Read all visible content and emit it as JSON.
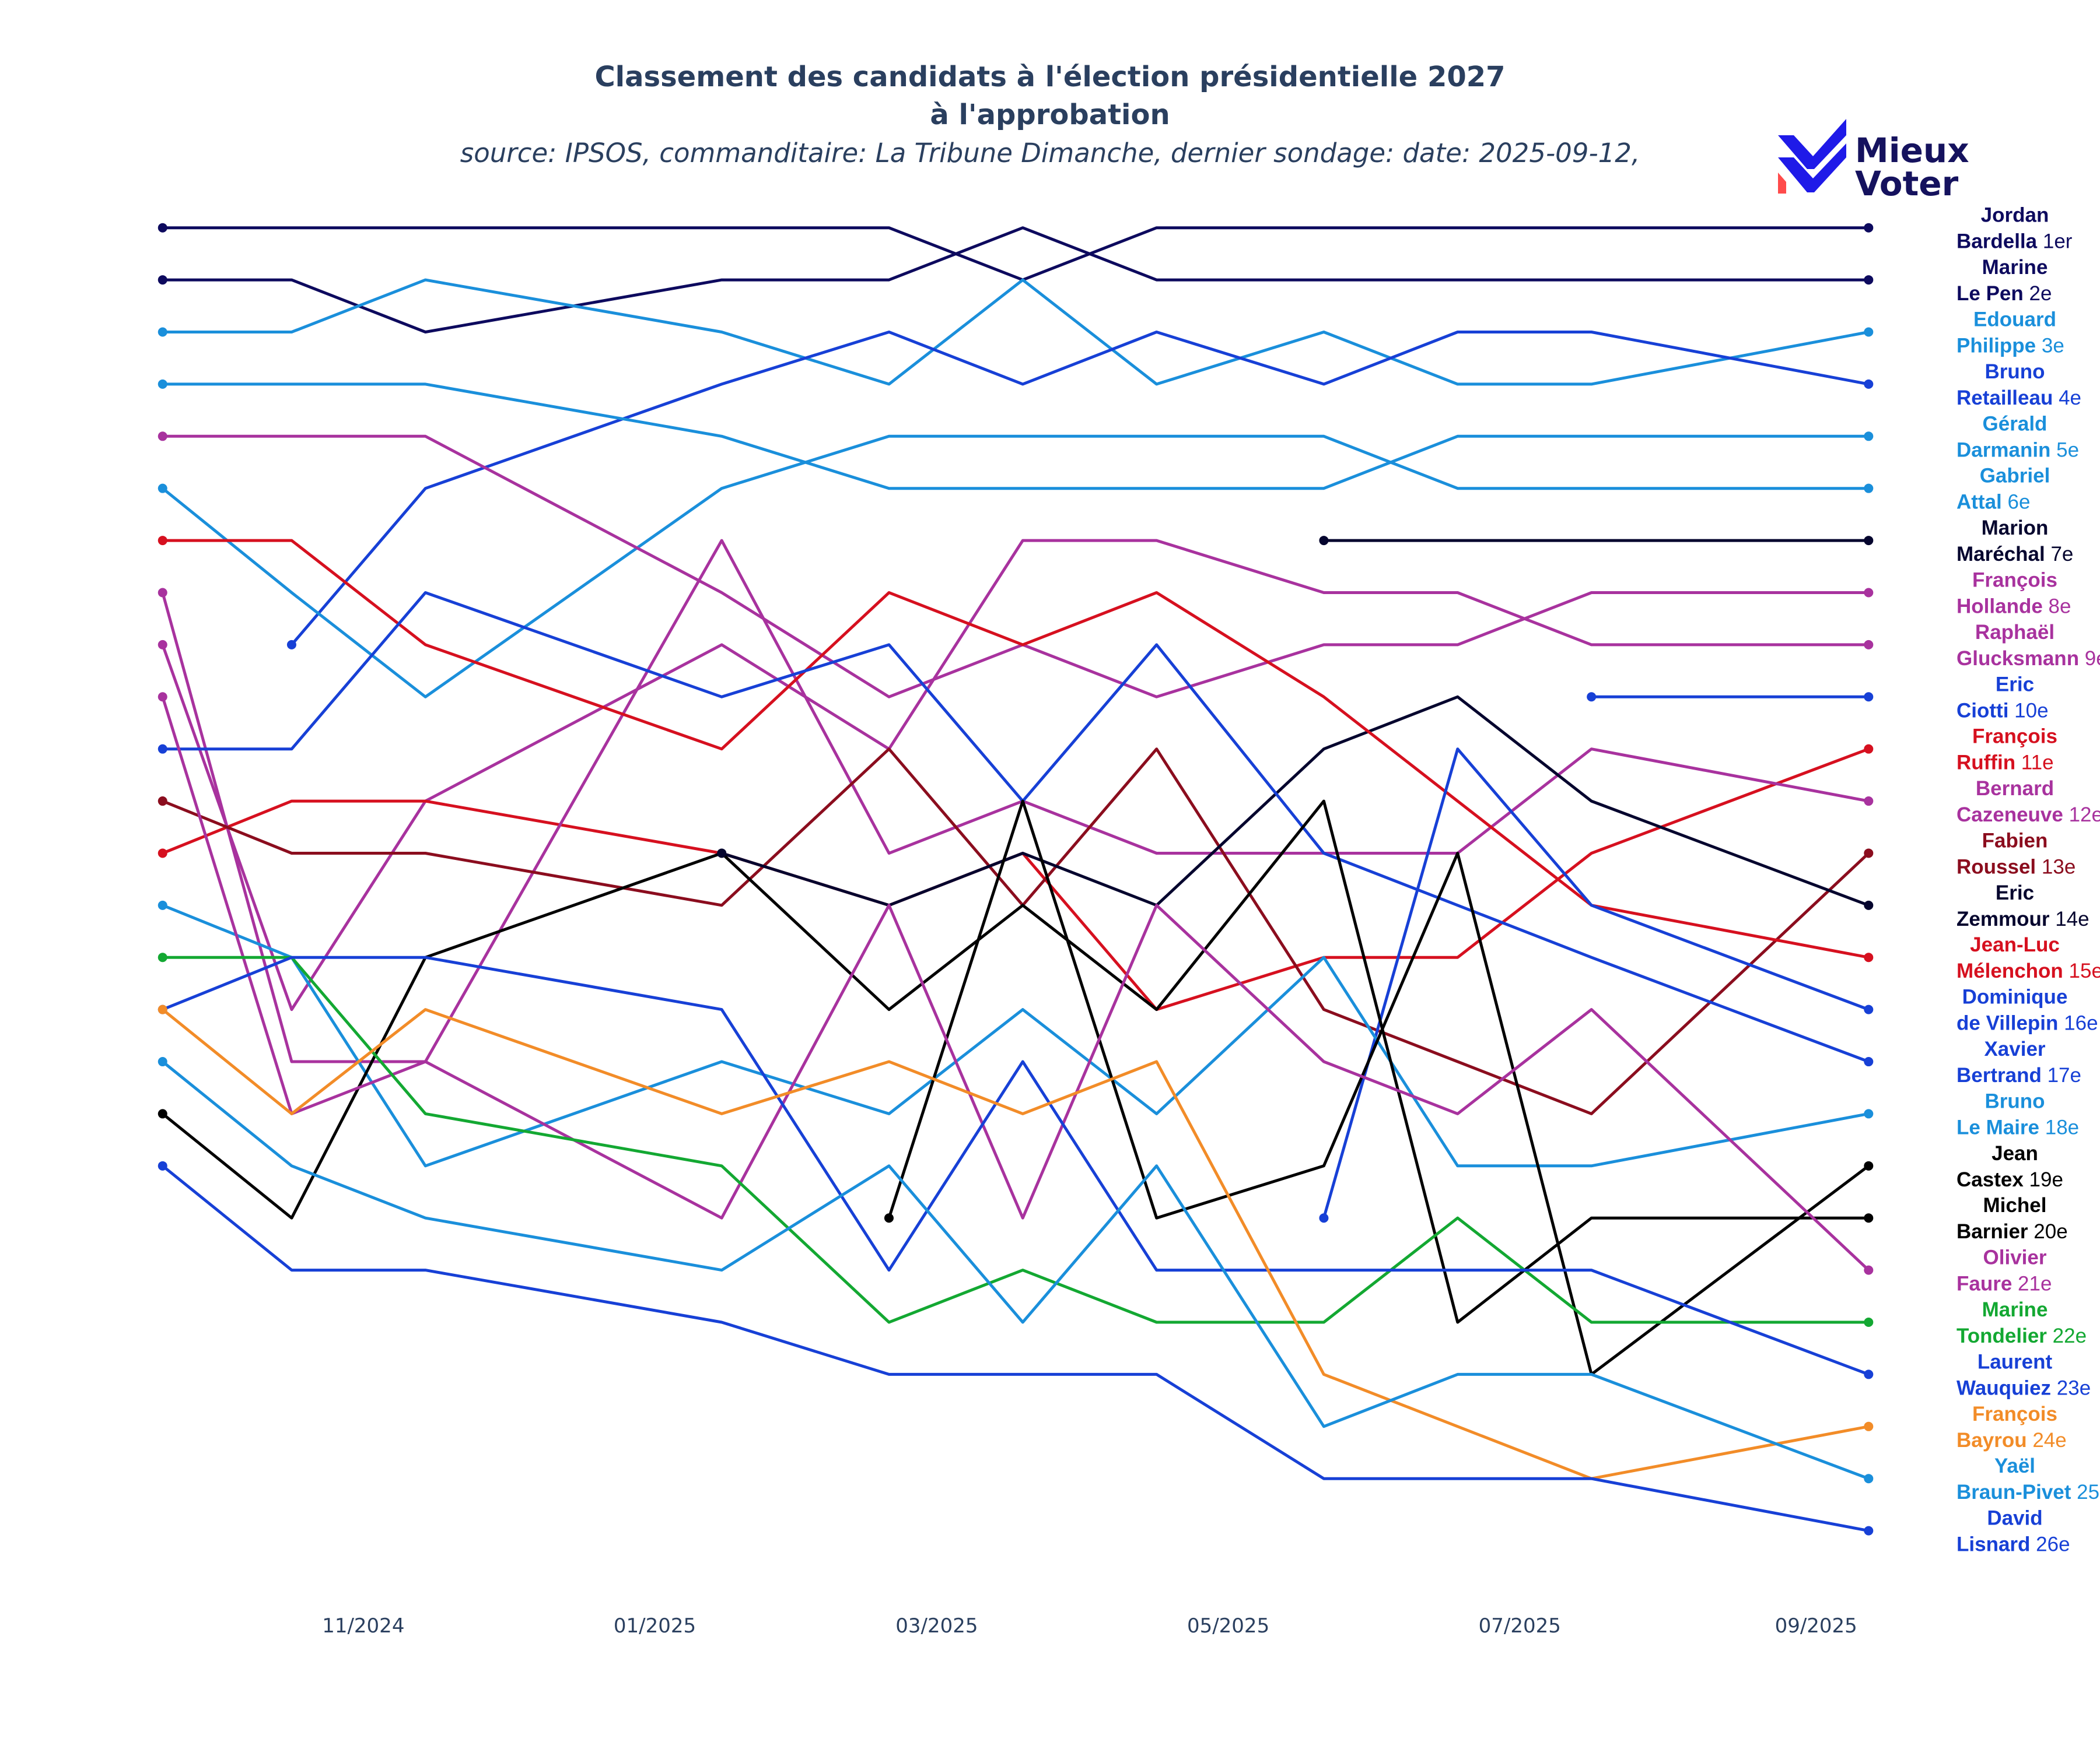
{
  "colors": {
    "text": "#2a3f5f",
    "logo_blue": "#1f1ae8",
    "logo_red": "#ff4b4b",
    "logo_text": "#15125e"
  },
  "logo": {
    "line1": "Mieux",
    "line2": "Voter",
    "icon": "mieux-voter-check-icon"
  },
  "chart_data": {
    "type": "line",
    "title": "Classement des candidats à l'élection présidentielle 2027",
    "title_line2": "à l'approbation",
    "subtitle": "source: IPSOS, commanditaire: La Tribune Dimanche, dernier sondage: date: 2025-09-12,",
    "x_ticks": [
      "11/2024",
      "01/2025",
      "03/2025",
      "05/2025",
      "07/2025",
      "09/2025"
    ],
    "x_tick_dates": [
      "2024-11-01",
      "2025-01-01",
      "2025-03-01",
      "2025-05-01",
      "2025-07-01",
      "2025-09-01"
    ],
    "xlim": [
      "2024-09-16",
      "2025-09-26"
    ],
    "ylim": [
      0.5,
      27
    ],
    "y_reversed": true,
    "y_unit": "rank",
    "grid": false,
    "legend": "none",
    "dates": [
      "2024-09-20",
      "2024-10-17",
      "2024-11-14",
      "2025-01-15",
      "2025-02-19",
      "2025-03-19",
      "2025-04-16",
      "2025-05-21",
      "2025-06-18",
      "2025-07-16",
      "2025-09-12"
    ],
    "series": [
      {
        "first": "Jordan",
        "last": "Bardella",
        "rank_label": "1er",
        "color": "#0d0a5e",
        "ranks": [
          1,
          1,
          1,
          1,
          1,
          2,
          1,
          1,
          1,
          1,
          1
        ]
      },
      {
        "first": "Marine",
        "last": "Le Pen",
        "rank_label": "2e",
        "color": "#0d0a5e",
        "ranks": [
          2,
          2,
          3,
          2,
          2,
          1,
          2,
          2,
          2,
          2,
          2
        ]
      },
      {
        "first": "Edouard",
        "last": "Philippe",
        "rank_label": "3e",
        "color": "#1a8fdb",
        "ranks": [
          3,
          3,
          2,
          3,
          4,
          2,
          4,
          3,
          4,
          4,
          3
        ]
      },
      {
        "first": "Bruno",
        "last": "Retailleau",
        "rank_label": "4e",
        "color": "#1740d6",
        "ranks": [
          null,
          9,
          6,
          4,
          3,
          4,
          3,
          4,
          3,
          3,
          4
        ]
      },
      {
        "first": "Gérald",
        "last": "Darmanin",
        "rank_label": "5e",
        "color": "#1a8fdb",
        "ranks": [
          4,
          4,
          4,
          5,
          6,
          6,
          6,
          6,
          5,
          5,
          5
        ]
      },
      {
        "first": "Gabriel",
        "last": "Attal",
        "rank_label": "6e",
        "color": "#1a8fdb",
        "ranks": [
          6,
          8,
          10,
          6,
          5,
          5,
          5,
          5,
          6,
          6,
          6
        ]
      },
      {
        "first": "Marion",
        "last": "Maréchal",
        "rank_label": "7e",
        "color": "#05052e",
        "ranks": [
          null,
          null,
          null,
          null,
          null,
          null,
          null,
          7,
          7,
          7,
          7
        ]
      },
      {
        "first": "François",
        "last": "Hollande",
        "rank_label": "8e",
        "color": "#a8329e",
        "ranks": [
          5,
          5,
          5,
          8,
          10,
          9,
          10,
          9,
          9,
          8,
          8
        ]
      },
      {
        "first": "Raphaël",
        "last": "Glucksmann",
        "rank_label": "9e",
        "color": "#a8329e",
        "ranks": [
          9,
          16,
          12,
          9,
          11,
          7,
          7,
          8,
          8,
          9,
          9
        ]
      },
      {
        "first": "Eric",
        "last": "Ciotti",
        "rank_label": "10e",
        "color": "#1740d6",
        "ranks": [
          null,
          null,
          null,
          null,
          null,
          null,
          null,
          null,
          null,
          10,
          10
        ]
      },
      {
        "first": "François",
        "last": "Ruffin",
        "rank_label": "11e",
        "color": "#d6101f",
        "ranks": [
          13,
          12,
          12,
          13,
          14,
          13,
          16,
          15,
          15,
          13,
          11
        ]
      },
      {
        "first": "Bernard",
        "last": "Cazeneuve",
        "rank_label": "12e",
        "color": "#a8329e",
        "ranks": [
          8,
          17,
          17,
          7,
          13,
          12,
          13,
          13,
          13,
          11,
          12
        ]
      },
      {
        "first": "Fabien",
        "last": "Roussel",
        "rank_label": "13e",
        "color": "#8b0d1e",
        "ranks": [
          12,
          13,
          13,
          14,
          11,
          14,
          11,
          16,
          17,
          18,
          13
        ]
      },
      {
        "first": "Eric",
        "last": "Zemmour",
        "rank_label": "14e",
        "color": "#05052e",
        "ranks": [
          null,
          null,
          null,
          13,
          14,
          13,
          14,
          11,
          10,
          12,
          14
        ]
      },
      {
        "first": "Jean-Luc",
        "last": "Mélenchon",
        "rank_label": "15e",
        "color": "#d6101f",
        "ranks": [
          7,
          7,
          9,
          11,
          8,
          9,
          8,
          10,
          12,
          14,
          15
        ]
      },
      {
        "first": "Dominique",
        "last": "de Villepin",
        "rank_label": "16e",
        "color": "#1740d6",
        "ranks": [
          null,
          null,
          null,
          null,
          null,
          null,
          null,
          20,
          11,
          14,
          16
        ]
      },
      {
        "first": "Xavier",
        "last": "Bertrand",
        "rank_label": "17e",
        "color": "#1740d6",
        "ranks": [
          11,
          11,
          8,
          10,
          9,
          12,
          9,
          13,
          14,
          15,
          17
        ]
      },
      {
        "first": "Bruno",
        "last": "Le Maire",
        "rank_label": "18e",
        "color": "#1a8fdb",
        "ranks": [
          14,
          15,
          19,
          17,
          18,
          16,
          18,
          15,
          19,
          19,
          18
        ]
      },
      {
        "first": "Jean",
        "last": "Castex",
        "rank_label": "19e",
        "color": "#000000",
        "ranks": [
          null,
          null,
          null,
          null,
          20,
          12,
          20,
          19,
          13,
          23,
          19
        ]
      },
      {
        "first": "Michel",
        "last": "Barnier",
        "rank_label": "20e",
        "color": "#000000",
        "ranks": [
          18,
          20,
          15,
          13,
          16,
          14,
          16,
          12,
          22,
          20,
          20
        ]
      },
      {
        "first": "Olivier",
        "last": "Faure",
        "rank_label": "21e",
        "color": "#a8329e",
        "ranks": [
          10,
          18,
          17,
          20,
          14,
          20,
          14,
          17,
          18,
          16,
          21
        ]
      },
      {
        "first": "Marine",
        "last": "Tondelier",
        "rank_label": "22e",
        "color": "#13a832",
        "ranks": [
          15,
          15,
          18,
          19,
          22,
          21,
          22,
          22,
          20,
          22,
          22
        ]
      },
      {
        "first": "Laurent",
        "last": "Wauquiez",
        "rank_label": "23e",
        "color": "#1740d6",
        "ranks": [
          16,
          15,
          15,
          16,
          21,
          17,
          21,
          21,
          21,
          21,
          23
        ]
      },
      {
        "first": "François",
        "last": "Bayrou",
        "rank_label": "24e",
        "color": "#f28c28",
        "ranks": [
          16,
          18,
          16,
          18,
          17,
          18,
          17,
          23,
          24,
          25,
          24
        ]
      },
      {
        "first": "Yaël",
        "last": "Braun-Pivet",
        "rank_label": "25e",
        "color": "#1a8fdb",
        "ranks": [
          17,
          19,
          20,
          21,
          19,
          22,
          19,
          24,
          23,
          23,
          25
        ]
      },
      {
        "first": "David",
        "last": "Lisnard",
        "rank_label": "26e",
        "color": "#1740d6",
        "ranks": [
          19,
          21,
          21,
          22,
          23,
          23,
          23,
          25,
          25,
          25,
          26
        ]
      }
    ]
  }
}
